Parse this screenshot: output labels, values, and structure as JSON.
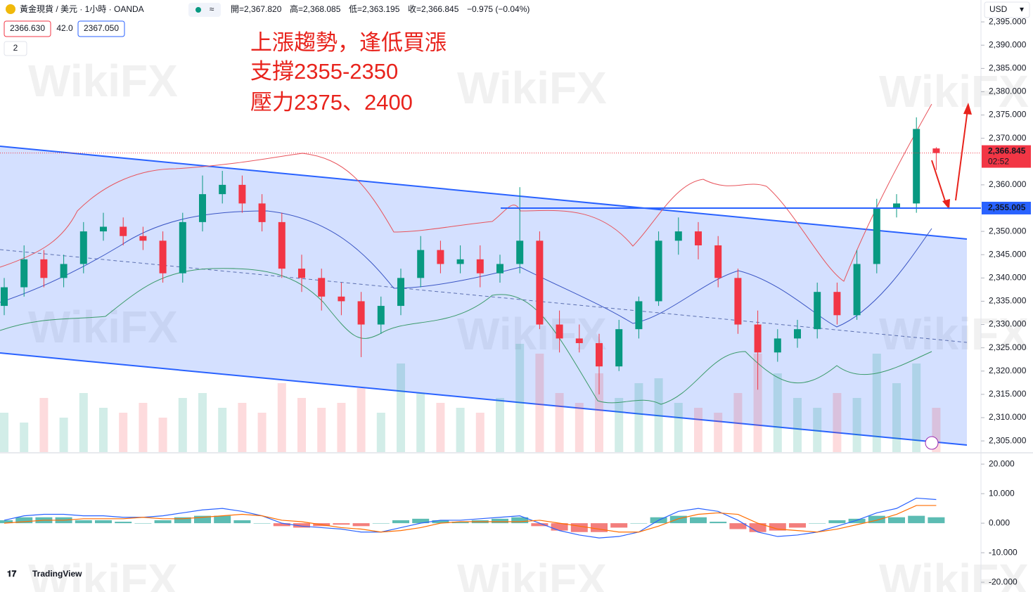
{
  "header": {
    "symbol": "黃金現貨 / 美元 · 1小時 · OANDA",
    "open": "開=2,367.820",
    "high": "高=2,368.085",
    "low": "低=2,363.195",
    "close": "收=2,366.845",
    "change": "−0.975 (−0.04%)",
    "bid": "2366.630",
    "spread": "42.0",
    "ask": "2367.050",
    "indicators_count": "2",
    "currency": "USD"
  },
  "watermark": "WikiFX",
  "brand": "TradingView",
  "chart_data": [
    {
      "type": "candlestick",
      "annotation": [
        "上漲趨勢，逢低買漲",
        "支撐2355-2350",
        "壓力2375、2400"
      ],
      "up_color": "#089981",
      "down_color": "#f23645",
      "open": [
        2334,
        2338,
        2344,
        2340,
        2343,
        2350,
        2351,
        2349,
        2348,
        2341,
        2352,
        2358,
        2360,
        2356,
        2352,
        2342,
        2340,
        2336,
        2335,
        2330,
        2334,
        2340,
        2346,
        2343,
        2344,
        2341,
        2343,
        2348,
        2330,
        2327,
        2326,
        2321,
        2329,
        2335,
        2348,
        2350,
        2347,
        2340,
        2330,
        2324,
        2327,
        2329,
        2337,
        2332,
        2343,
        2355,
        2356,
        2367.82
      ],
      "high": [
        2340,
        2347,
        2346,
        2345,
        2352,
        2354,
        2353,
        2351,
        2350,
        2354,
        2362,
        2363,
        2362,
        2358,
        2354,
        2345,
        2342,
        2339,
        2337,
        2336,
        2342,
        2349,
        2348,
        2347,
        2347,
        2345,
        2359.5,
        2350,
        2333,
        2330,
        2328,
        2331,
        2336,
        2350,
        2353,
        2352,
        2349,
        2342,
        2333,
        2329,
        2331,
        2339,
        2339,
        2346,
        2357,
        2358,
        2374.5,
        2368.085
      ],
      "low": [
        2332,
        2336,
        2338,
        2338,
        2341,
        2348,
        2347,
        2346,
        2339,
        2339,
        2350,
        2356,
        2354,
        2350,
        2340,
        2337,
        2333,
        2332,
        2323,
        2328,
        2332,
        2338,
        2341,
        2341,
        2338,
        2339,
        2341,
        2329,
        2324,
        2324,
        2315,
        2320,
        2327,
        2334,
        2345,
        2344,
        2338,
        2328,
        2316,
        2322,
        2325,
        2327,
        2330,
        2331,
        2341,
        2353,
        2354,
        2363.195
      ],
      "close": [
        2338,
        2344,
        2340,
        2343,
        2350,
        2351,
        2349,
        2348,
        2341,
        2352,
        2358,
        2360,
        2356,
        2352,
        2342,
        2340,
        2336,
        2335,
        2330,
        2334,
        2340,
        2346,
        2343,
        2344,
        2341,
        2343,
        2348,
        2330,
        2327,
        2326,
        2321,
        2329,
        2335,
        2348,
        2350,
        2347,
        2340,
        2330,
        2324,
        2327,
        2329,
        2337,
        2332,
        2343,
        2355,
        2356,
        2372,
        2366.845
      ],
      "volume": [
        40,
        30,
        55,
        35,
        60,
        45,
        40,
        50,
        35,
        55,
        60,
        45,
        50,
        40,
        70,
        55,
        45,
        50,
        65,
        40,
        90,
        60,
        50,
        45,
        40,
        55,
        110,
        100,
        60,
        50,
        80,
        55,
        70,
        75,
        50,
        45,
        40,
        60,
        100,
        80,
        55,
        45,
        60,
        55,
        100,
        70,
        90,
        45
      ],
      "ylim": [
        2302.6,
        2399.7
      ],
      "yticks": [
        {
          "value": 2305,
          "label": "2,305.000"
        },
        {
          "value": 2310,
          "label": "2,310.000"
        },
        {
          "value": 2315,
          "label": "2,315.000"
        },
        {
          "value": 2320,
          "label": "2,320.000"
        },
        {
          "value": 2325,
          "label": "2,325.000"
        },
        {
          "value": 2330,
          "label": "2,330.000"
        },
        {
          "value": 2335,
          "label": "2,335.000"
        },
        {
          "value": 2340,
          "label": "2,340.000"
        },
        {
          "value": 2345,
          "label": "2,345.000"
        },
        {
          "value": 2350,
          "label": "2,350.000"
        },
        {
          "value": 2360,
          "label": "2,360.000"
        },
        {
          "value": 2370,
          "label": "2,370.000"
        },
        {
          "value": 2375,
          "label": "2,375.000"
        },
        {
          "value": 2380,
          "label": "2,380.000"
        },
        {
          "value": 2385,
          "label": "2,385.000"
        },
        {
          "value": 2390,
          "label": "2,390.000"
        },
        {
          "value": 2395,
          "label": "2,395.000"
        }
      ],
      "last_price": {
        "value": 2366.845,
        "label": "2,366.845"
      },
      "countdown": "02:52",
      "support": {
        "value": 2355.005,
        "label": "2,355.005"
      }
    },
    {
      "type": "macd",
      "hist_up_color": "#26a69a",
      "hist_down_color": "#ef5350",
      "macd_color": "#2962ff",
      "signal_color": "#ff6d00",
      "histogram": [
        1,
        2,
        2,
        2,
        1,
        1,
        0.5,
        0,
        1,
        2,
        2.5,
        2.5,
        1,
        0,
        -1,
        -1.5,
        -1,
        -0.5,
        -1,
        0,
        1,
        1.5,
        1,
        0.5,
        1,
        1.5,
        2,
        -1,
        -2.5,
        -3,
        -3,
        -1.5,
        0,
        2,
        2.5,
        2,
        0.5,
        -2,
        -3,
        -2.5,
        -1.5,
        0,
        1,
        1.5,
        2.5,
        2,
        2.5,
        2
      ],
      "macd": [
        1,
        2.5,
        3,
        3,
        2.5,
        2.5,
        2,
        2,
        2.5,
        3.5,
        4.5,
        5,
        4,
        2.5,
        0,
        -1,
        -1.5,
        -2,
        -3,
        -3,
        -1.5,
        0,
        1,
        1,
        1.5,
        2,
        2.5,
        0,
        -2.5,
        -4,
        -5,
        -4.5,
        -3,
        1,
        4,
        5,
        4,
        1,
        -3,
        -4.5,
        -4,
        -3,
        -1,
        1,
        3.5,
        5,
        8.5,
        8
      ],
      "signal": [
        0,
        0.5,
        1,
        1,
        1.5,
        1.5,
        1.5,
        2,
        1.5,
        1.5,
        2,
        2.5,
        3,
        2.5,
        1,
        0.5,
        -0.5,
        -1.5,
        -2,
        -3,
        -2.5,
        -1.5,
        0,
        0.5,
        0.5,
        0.5,
        0.5,
        1,
        0,
        -1,
        -2,
        -3,
        -3,
        -1,
        1.5,
        3,
        3.5,
        3,
        0,
        -2,
        -2.5,
        -3,
        -2,
        -0.5,
        1,
        3,
        6,
        6
      ],
      "ylim": [
        -23.3,
        23.6
      ],
      "yticks": [
        {
          "value": 20,
          "label": "20.000"
        },
        {
          "value": 10,
          "label": "10.000"
        },
        {
          "value": 0,
          "label": "0.000"
        },
        {
          "value": -10,
          "label": "-10.000"
        },
        {
          "value": -20,
          "label": "-20.000"
        }
      ]
    }
  ]
}
